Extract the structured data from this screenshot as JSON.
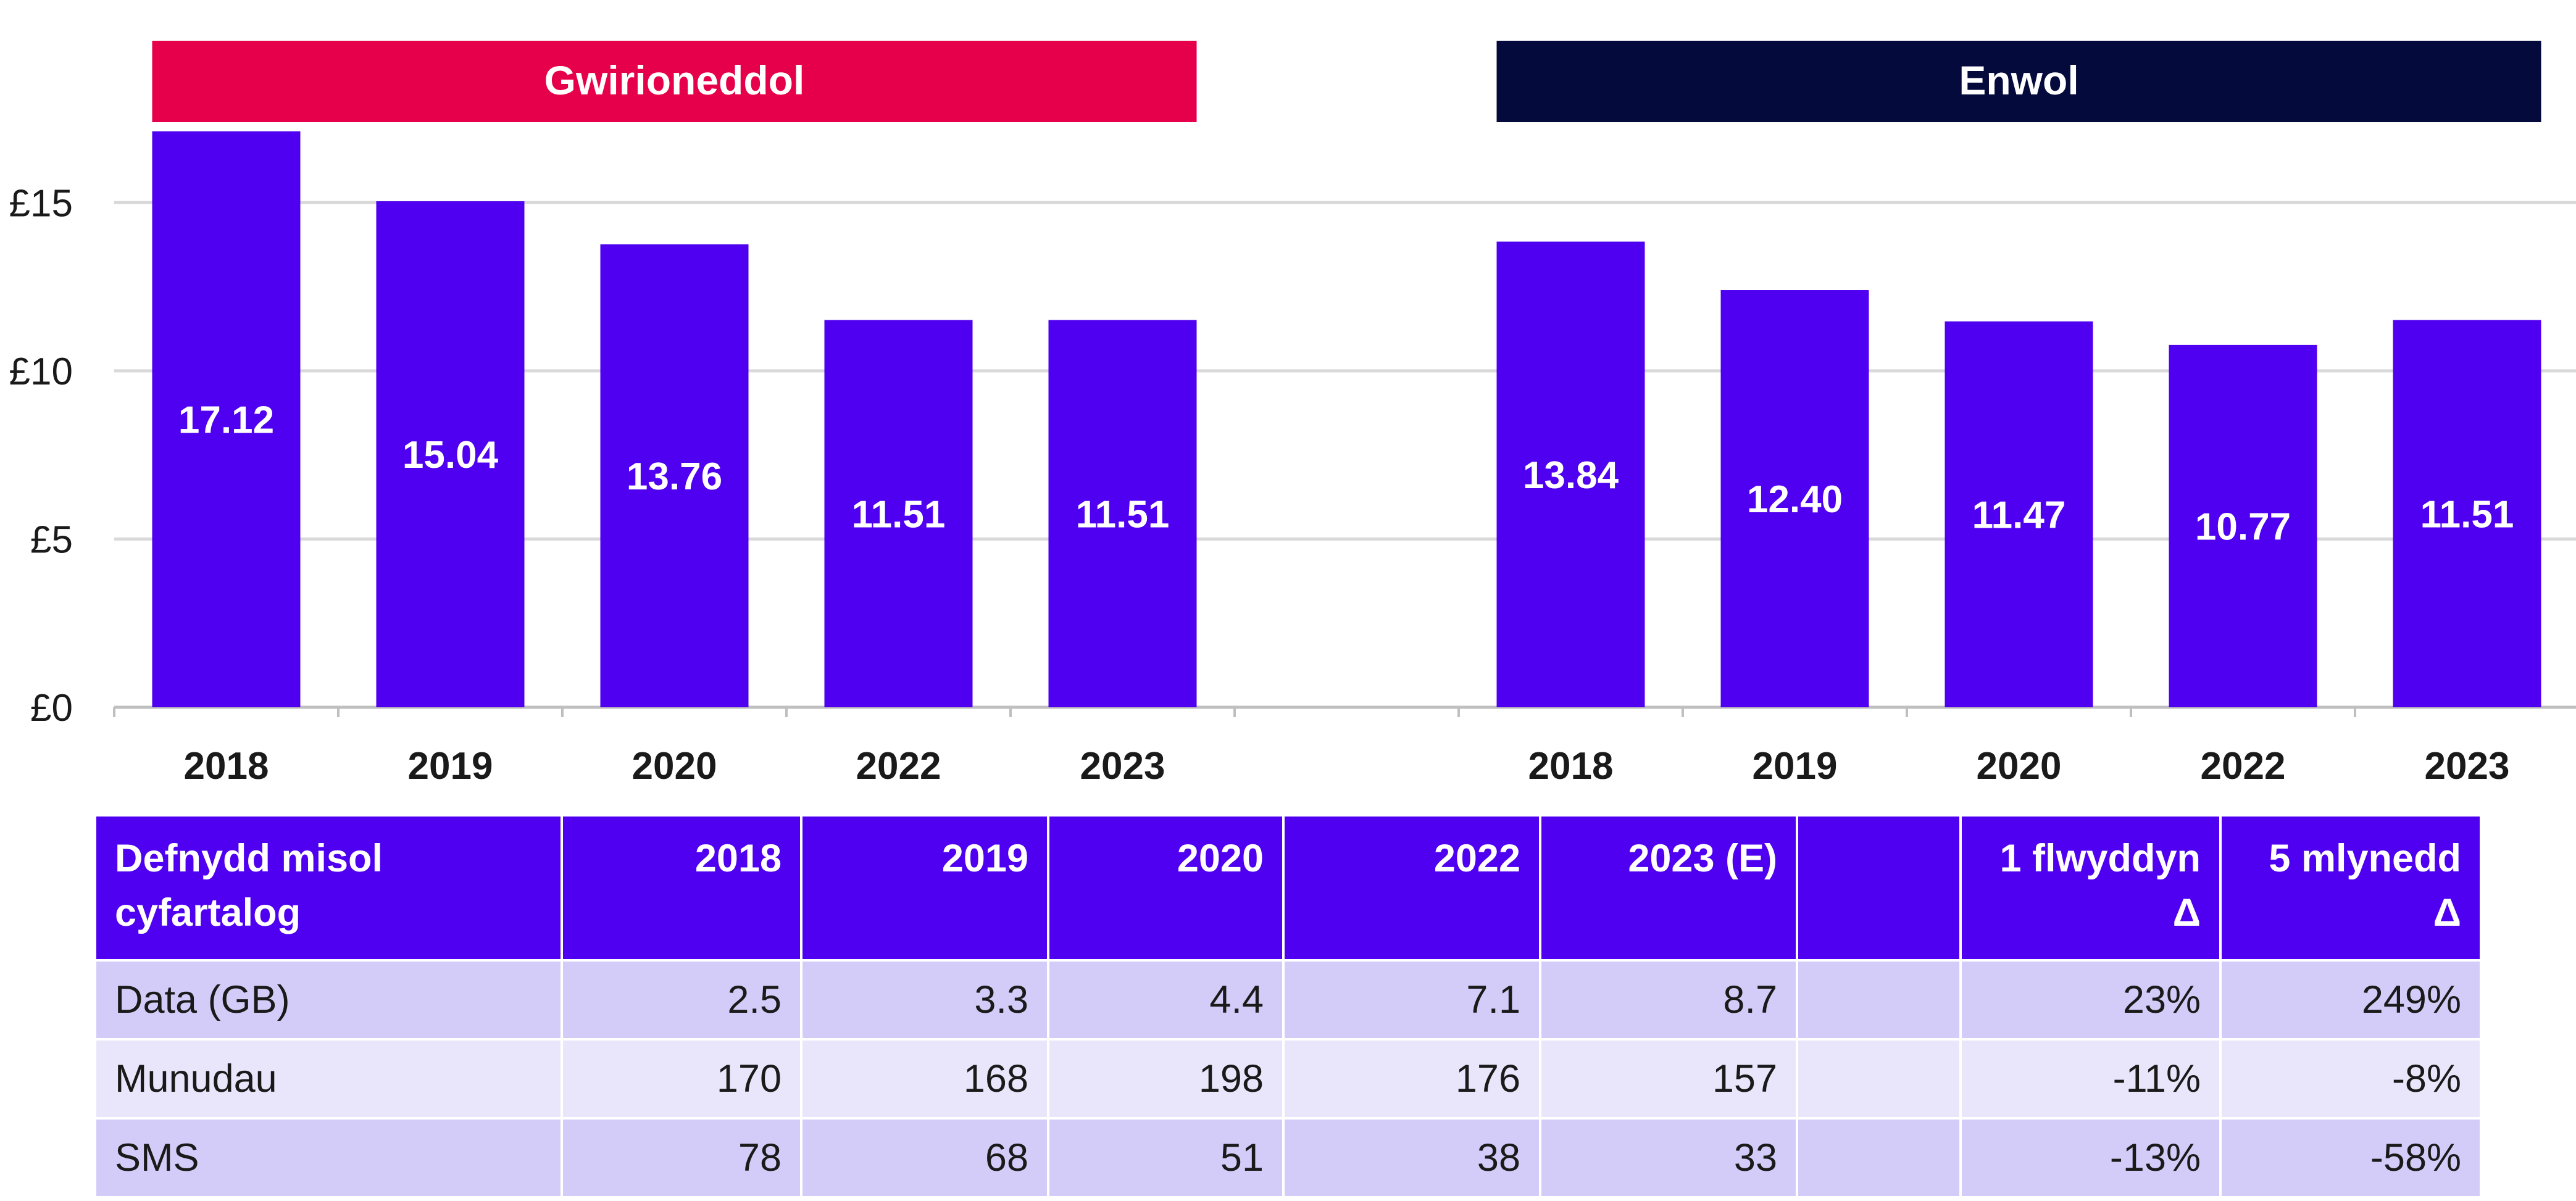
{
  "chart_data": {
    "type": "bar",
    "categories": [
      "2018",
      "2019",
      "2020",
      "2022",
      "2023"
    ],
    "series": [
      {
        "name": "Gwirioneddol",
        "values": [
          17.12,
          15.04,
          13.76,
          11.51,
          11.51
        ],
        "labels": [
          "17.12",
          "15.04",
          "13.76",
          "11.51",
          "11.51"
        ]
      },
      {
        "name": "Enwol",
        "values": [
          13.84,
          12.4,
          11.47,
          10.77,
          11.51
        ],
        "labels": [
          "13.84",
          "12.40",
          "11.47",
          "10.77",
          "11.51"
        ]
      }
    ],
    "ylim": [
      0,
      17.5
    ],
    "yticks": [
      0,
      5,
      10,
      15
    ],
    "ytick_labels": [
      "£0",
      "£5",
      "£10",
      "£15"
    ],
    "grid": true,
    "title": "",
    "xlabel": "",
    "ylabel": ""
  },
  "colors": {
    "bar": "#5000f0",
    "gwirioneddol_header": "#e6004c",
    "enwol_header": "#050a3c",
    "grid": "#d9d9d9"
  },
  "table": {
    "header": [
      "Defnydd misol cyfartalog",
      "2018",
      "2019",
      "2020",
      "2022",
      "2023 (E)",
      "",
      "1 flwyddyn Δ",
      "5 mlynedd Δ"
    ],
    "rows": [
      [
        "Data (GB)",
        "2.5",
        "3.3",
        "4.4",
        "7.1",
        "8.7",
        "",
        "23%",
        "249%"
      ],
      [
        "Munudau",
        "170",
        "168",
        "198",
        "176",
        "157",
        "",
        "-11%",
        "-8%"
      ],
      [
        "SMS",
        "78",
        "68",
        "51",
        "38",
        "33",
        "",
        "-13%",
        "-58%"
      ]
    ]
  }
}
